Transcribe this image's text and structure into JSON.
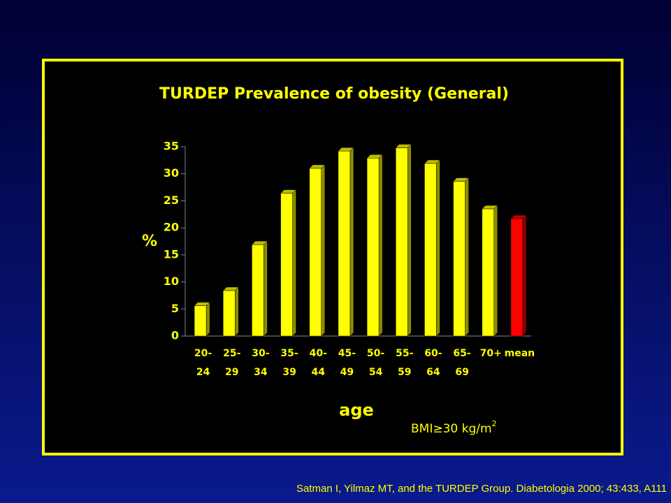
{
  "chart_data": {
    "type": "bar",
    "title": "TURDEP Prevalence of obesity (General)",
    "y_label": "%",
    "x_label": "age",
    "annotation": {
      "text": "BMI≥30 kg/m",
      "superscript": "2"
    },
    "source": "Satman I, Yilmaz MT, and the TURDEP Group. Diabetologia 2000; 43:433, A111",
    "categories": [
      [
        "20-",
        "24"
      ],
      [
        "25-",
        "29"
      ],
      [
        "30-",
        "34"
      ],
      [
        "35-",
        "39"
      ],
      [
        "40-",
        "44"
      ],
      [
        "45-",
        "49"
      ],
      [
        "50-",
        "54"
      ],
      [
        "55-",
        "59"
      ],
      [
        "60-",
        "64"
      ],
      [
        "65-",
        "69"
      ],
      [
        "70+"
      ],
      [
        "mean"
      ]
    ],
    "values": [
      5.6,
      8.4,
      16.9,
      26.4,
      31.0,
      34.2,
      32.9,
      34.8,
      31.9,
      28.6,
      23.5,
      21.7
    ],
    "colors": [
      "#ffff00",
      "#ffff00",
      "#ffff00",
      "#ffff00",
      "#ffff00",
      "#ffff00",
      "#ffff00",
      "#ffff00",
      "#ffff00",
      "#ffff00",
      "#ffff00",
      "#ff0000"
    ],
    "ylim": [
      0,
      35
    ],
    "yticks": [
      0,
      5,
      10,
      15,
      20,
      25,
      30,
      35
    ],
    "grid": false
  }
}
